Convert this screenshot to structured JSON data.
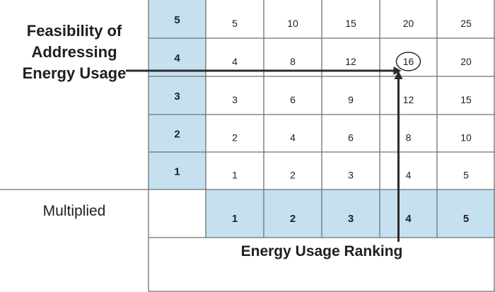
{
  "y_axis": {
    "title_lines": [
      "Feasibility of",
      "Addressing",
      "Energy Usage"
    ],
    "labels": [
      "5",
      "4",
      "3",
      "2",
      "1"
    ]
  },
  "x_axis": {
    "title": "Energy Usage Ranking",
    "labels": [
      "1",
      "2",
      "3",
      "4",
      "5"
    ]
  },
  "row_header": "Multiplied",
  "matrix": [
    [
      "5",
      "10",
      "15",
      "20",
      "25"
    ],
    [
      "4",
      "8",
      "12",
      "16",
      "20"
    ],
    [
      "3",
      "6",
      "9",
      "12",
      "15"
    ],
    [
      "2",
      "4",
      "6",
      "8",
      "10"
    ],
    [
      "1",
      "2",
      "3",
      "4",
      "5"
    ]
  ],
  "highlight": {
    "feasibility": 4,
    "ranking": 4,
    "value": "16"
  },
  "colors": {
    "header_fill": "#c5e1f0",
    "grid": "#707070",
    "text": "#1f1f1f",
    "arrow": "#2b2b2b"
  }
}
